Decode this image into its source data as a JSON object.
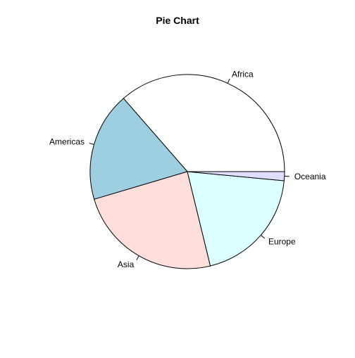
{
  "chart_data": {
    "type": "pie",
    "title": "Pie Chart",
    "categories": [
      "Africa",
      "Americas",
      "Asia",
      "Europe",
      "Oceania"
    ],
    "values": [
      36.4,
      18.2,
      24.2,
      19.7,
      1.5
    ],
    "colors": [
      "#ffffff",
      "#9ecfe0",
      "#ffdedb",
      "#dcffff",
      "#dedeff"
    ],
    "start_angle_deg": 0,
    "direction": "counterclockwise"
  }
}
